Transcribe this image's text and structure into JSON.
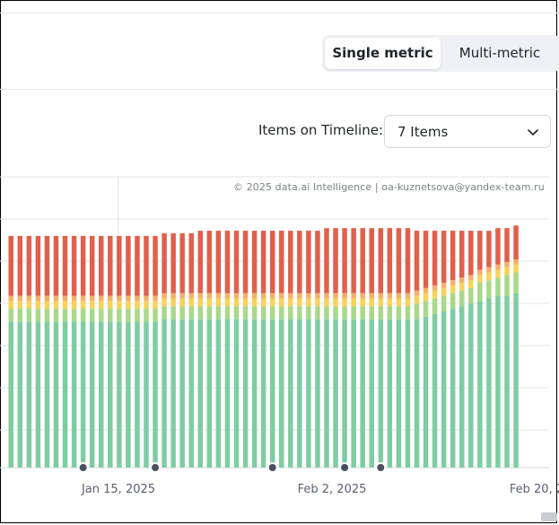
{
  "metric_toggle": {
    "single_label": "Single metric",
    "multi_label": "Multi-metric",
    "selected": "Single metric"
  },
  "timeline": {
    "label": "Items on Timeline:",
    "selected_value": "7 Items"
  },
  "watermark": "© 2025 data.ai Intelligence | oa-kuznetsova@yandex-team.ru",
  "colors": {
    "green": "#7fcca3",
    "light_green": "#a9d88a",
    "yellow": "#f6d35b",
    "orange": "#f3b06a",
    "red": "#e0604c",
    "grid": "#e3e6ea",
    "marker": "#4a5060",
    "axis_text": "#5b6170"
  },
  "chart_data": {
    "type": "bar",
    "stacked": true,
    "x_tick_labels": [
      "Jan 15, 2025",
      "Feb 2, 2025",
      "Feb 20, 2"
    ],
    "series_order": [
      "green",
      "light_green",
      "yellow",
      "orange",
      "red"
    ],
    "series": [
      {
        "color": "green",
        "values": [
          0.56,
          0.56,
          0.56,
          0.56,
          0.56,
          0.56,
          0.56,
          0.56,
          0.56,
          0.56,
          0.56,
          0.56,
          0.56,
          0.56,
          0.56,
          0.56,
          0.56,
          0.57,
          0.57,
          0.57,
          0.57,
          0.57,
          0.57,
          0.57,
          0.57,
          0.57,
          0.57,
          0.57,
          0.57,
          0.57,
          0.57,
          0.57,
          0.57,
          0.57,
          0.57,
          0.57,
          0.57,
          0.57,
          0.57,
          0.57,
          0.57,
          0.57,
          0.57,
          0.57,
          0.57,
          0.57,
          0.58,
          0.59,
          0.6,
          0.61,
          0.62,
          0.63,
          0.64,
          0.65,
          0.66,
          0.66,
          0.67
        ]
      },
      {
        "color": "light_green",
        "values": [
          0.05,
          0.05,
          0.05,
          0.05,
          0.05,
          0.05,
          0.05,
          0.05,
          0.05,
          0.05,
          0.05,
          0.05,
          0.05,
          0.05,
          0.05,
          0.05,
          0.05,
          0.05,
          0.05,
          0.05,
          0.05,
          0.05,
          0.05,
          0.05,
          0.05,
          0.05,
          0.05,
          0.05,
          0.05,
          0.05,
          0.05,
          0.05,
          0.05,
          0.05,
          0.05,
          0.05,
          0.05,
          0.05,
          0.05,
          0.05,
          0.05,
          0.05,
          0.05,
          0.05,
          0.05,
          0.06,
          0.06,
          0.06,
          0.06,
          0.06,
          0.06,
          0.06,
          0.07,
          0.07,
          0.07,
          0.08,
          0.08
        ]
      },
      {
        "color": "yellow",
        "values": [
          0.03,
          0.03,
          0.03,
          0.03,
          0.03,
          0.03,
          0.03,
          0.03,
          0.03,
          0.03,
          0.03,
          0.03,
          0.03,
          0.03,
          0.03,
          0.03,
          0.03,
          0.03,
          0.03,
          0.03,
          0.03,
          0.03,
          0.03,
          0.03,
          0.03,
          0.03,
          0.03,
          0.03,
          0.03,
          0.03,
          0.03,
          0.03,
          0.03,
          0.03,
          0.03,
          0.03,
          0.03,
          0.03,
          0.03,
          0.03,
          0.03,
          0.03,
          0.03,
          0.03,
          0.03,
          0.03,
          0.03,
          0.03,
          0.03,
          0.03,
          0.03,
          0.03,
          0.03,
          0.03,
          0.03,
          0.03,
          0.03
        ]
      },
      {
        "color": "orange",
        "values": [
          0.02,
          0.02,
          0.02,
          0.02,
          0.02,
          0.02,
          0.02,
          0.02,
          0.02,
          0.02,
          0.02,
          0.02,
          0.02,
          0.02,
          0.02,
          0.02,
          0.02,
          0.02,
          0.02,
          0.02,
          0.02,
          0.02,
          0.02,
          0.02,
          0.02,
          0.02,
          0.02,
          0.02,
          0.02,
          0.02,
          0.02,
          0.02,
          0.02,
          0.02,
          0.02,
          0.02,
          0.02,
          0.02,
          0.02,
          0.02,
          0.02,
          0.02,
          0.02,
          0.02,
          0.02,
          0.02,
          0.02,
          0.02,
          0.02,
          0.02,
          0.02,
          0.02,
          0.02,
          0.02,
          0.02,
          0.02,
          0.02
        ]
      },
      {
        "color": "red",
        "values": [
          0.23,
          0.23,
          0.23,
          0.23,
          0.23,
          0.23,
          0.23,
          0.23,
          0.23,
          0.23,
          0.23,
          0.23,
          0.23,
          0.23,
          0.23,
          0.23,
          0.23,
          0.23,
          0.23,
          0.23,
          0.23,
          0.24,
          0.24,
          0.24,
          0.24,
          0.24,
          0.24,
          0.24,
          0.24,
          0.24,
          0.24,
          0.24,
          0.24,
          0.24,
          0.24,
          0.25,
          0.25,
          0.25,
          0.25,
          0.25,
          0.25,
          0.25,
          0.25,
          0.25,
          0.25,
          0.23,
          0.22,
          0.21,
          0.2,
          0.19,
          0.18,
          0.17,
          0.15,
          0.14,
          0.14,
          0.13,
          0.13
        ]
      }
    ],
    "markers_at_bar_index": [
      8,
      16,
      29,
      37,
      41
    ],
    "grid": true
  }
}
